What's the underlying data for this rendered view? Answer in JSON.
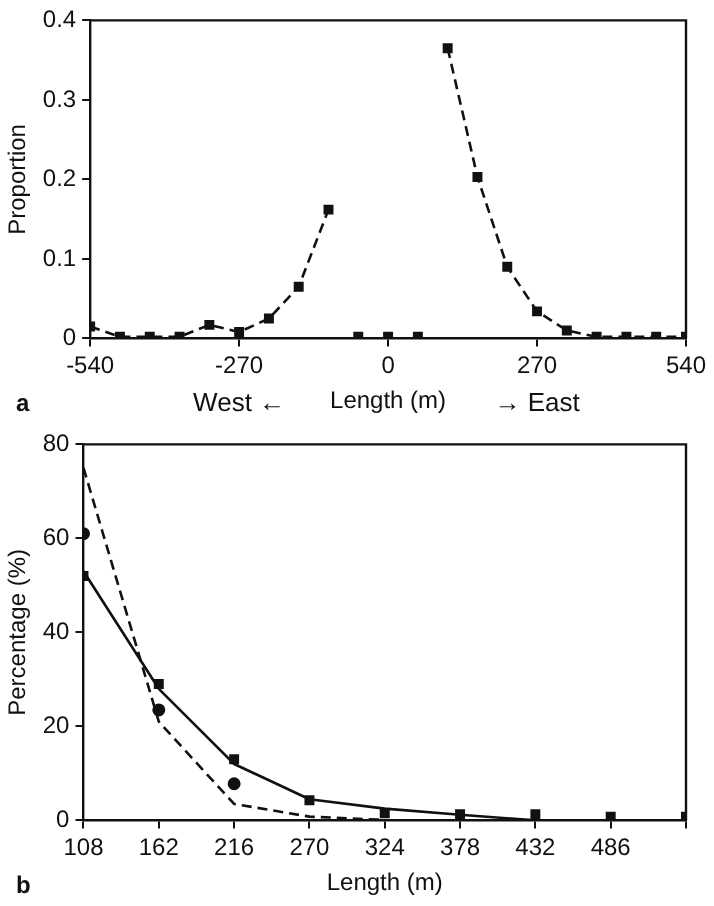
{
  "chart_data": [
    {
      "type": "line",
      "xlabel": "Length (m)",
      "ylabel": "Proportion",
      "annotations": [
        "a",
        "West ←",
        "→ East"
      ],
      "xlim": [
        -540,
        540
      ],
      "ylim": [
        0,
        0.4
      ],
      "xticks": [
        -540,
        -270,
        0,
        270,
        540
      ],
      "yticks": [
        0,
        0.1,
        0.2,
        0.3,
        0.4
      ],
      "grid": false,
      "legend": false,
      "series": [
        {
          "type": "line",
          "color": "#111111",
          "marker": "square",
          "line_style": "dashed",
          "x": [
            -540,
            -486,
            -432,
            -378,
            -324,
            -270,
            -216,
            -162,
            -108
          ],
          "values": [
            0.015,
            0.002,
            0.002,
            0.002,
            0.017,
            0.008,
            0.025,
            0.065,
            0.162
          ]
        },
        {
          "type": "scatter",
          "color": "#111111",
          "marker": "square",
          "x": [
            -54,
            0,
            54
          ],
          "values": [
            0.002,
            0.002,
            0.002
          ]
        },
        {
          "type": "line",
          "color": "#111111",
          "marker": "square",
          "line_style": "dashed",
          "x": [
            108,
            162,
            216,
            270,
            324,
            378,
            432,
            486,
            540
          ],
          "values": [
            0.365,
            0.203,
            0.09,
            0.034,
            0.01,
            0.002,
            0.002,
            0.002,
            0.002
          ]
        }
      ]
    },
    {
      "type": "line",
      "xlabel": "Length (m)",
      "ylabel": "Percentage (%)",
      "annotations": [
        "b"
      ],
      "xlim": [
        108,
        540
      ],
      "ylim": [
        0,
        80
      ],
      "xticks": [
        108,
        162,
        216,
        270,
        324,
        378,
        432,
        486,
        {
          "value": 540,
          "label": null
        }
      ],
      "yticks": [
        0,
        20,
        40,
        60,
        80
      ],
      "grid": false,
      "legend": false,
      "series": [
        {
          "type": "scatter",
          "color": "#111111",
          "marker": "square",
          "x": [
            108,
            162,
            216,
            270,
            324,
            378,
            432,
            486,
            540
          ],
          "values": [
            52,
            29,
            13,
            4.3,
            1.5,
            1.3,
            1.3,
            0.8,
            0.8
          ]
        },
        {
          "type": "scatter",
          "color": "#111111",
          "marker": "circle",
          "x": [
            108,
            162,
            216
          ],
          "values": [
            61,
            23.5,
            7.8
          ]
        },
        {
          "type": "line",
          "color": "#111111",
          "marker": "none",
          "line_style": "solid",
          "x": [
            108,
            162,
            216,
            270,
            324,
            378,
            432
          ],
          "values": [
            53,
            28,
            12,
            4.5,
            2.5,
            1.2,
            0
          ]
        },
        {
          "type": "line",
          "color": "#111111",
          "marker": "none",
          "line_style": "dashed",
          "x": [
            108,
            162,
            216,
            270,
            324
          ],
          "values": [
            75,
            21,
            3.5,
            0.8,
            0.1
          ]
        }
      ]
    }
  ]
}
